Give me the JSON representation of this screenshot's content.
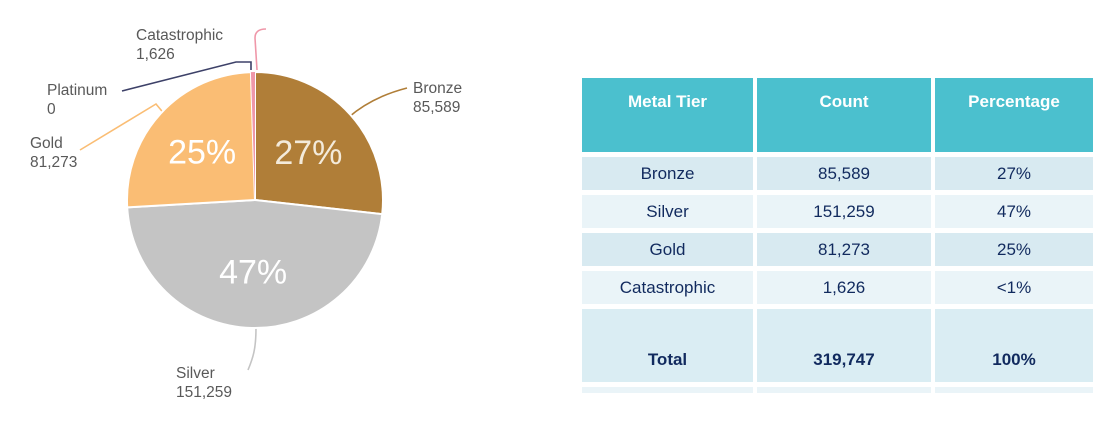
{
  "chart_data": {
    "type": "pie",
    "title": "",
    "total": 319747,
    "slices": [
      {
        "name": "Bronze",
        "value": 85589,
        "value_display": "85,589",
        "pct_label": "27%",
        "color": "#B07E38",
        "pct_color": "#F3EADA"
      },
      {
        "name": "Silver",
        "value": 151259,
        "value_display": "151,259",
        "pct_label": "47%",
        "color": "#C4C4C4",
        "pct_color": "#FFFFFF"
      },
      {
        "name": "Gold",
        "value": 81273,
        "value_display": "81,273",
        "pct_label": "25%",
        "color": "#FABD74",
        "pct_color": "#FFFFFF"
      },
      {
        "name": "Catastrophic",
        "value": 1626,
        "value_display": "1,626",
        "pct_label": null,
        "color": "#EF97A9",
        "pct_color": null
      },
      {
        "name": "Platinum",
        "value": 0,
        "value_display": "0",
        "pct_label": null,
        "color": "#3D4168",
        "pct_color": null
      }
    ],
    "layout": {
      "start_angle_deg": 0,
      "direction": "clockwise",
      "label_color": "#595959",
      "legend": "off",
      "grid": "off"
    }
  },
  "table": {
    "headers": [
      "Metal Tier",
      "Count",
      "Percentage"
    ],
    "rows": [
      {
        "tier": "Bronze",
        "count": "85,589",
        "percentage": "27%"
      },
      {
        "tier": "Silver",
        "count": "151,259",
        "percentage": "47%"
      },
      {
        "tier": "Gold",
        "count": "81,273",
        "percentage": "25%"
      },
      {
        "tier": "Catastrophic",
        "count": "1,626",
        "percentage": "<1%"
      }
    ],
    "total_row": {
      "tier": "Total",
      "count": "319,747",
      "percentage": "100%"
    },
    "colors": {
      "header_bg": "#4BC0CE",
      "header_text": "#FFFFFF",
      "row_dark": "#D8EAF1",
      "row_light": "#EAF4F8",
      "total_bg": "#DAEDF3",
      "text": "#112A5E"
    }
  }
}
